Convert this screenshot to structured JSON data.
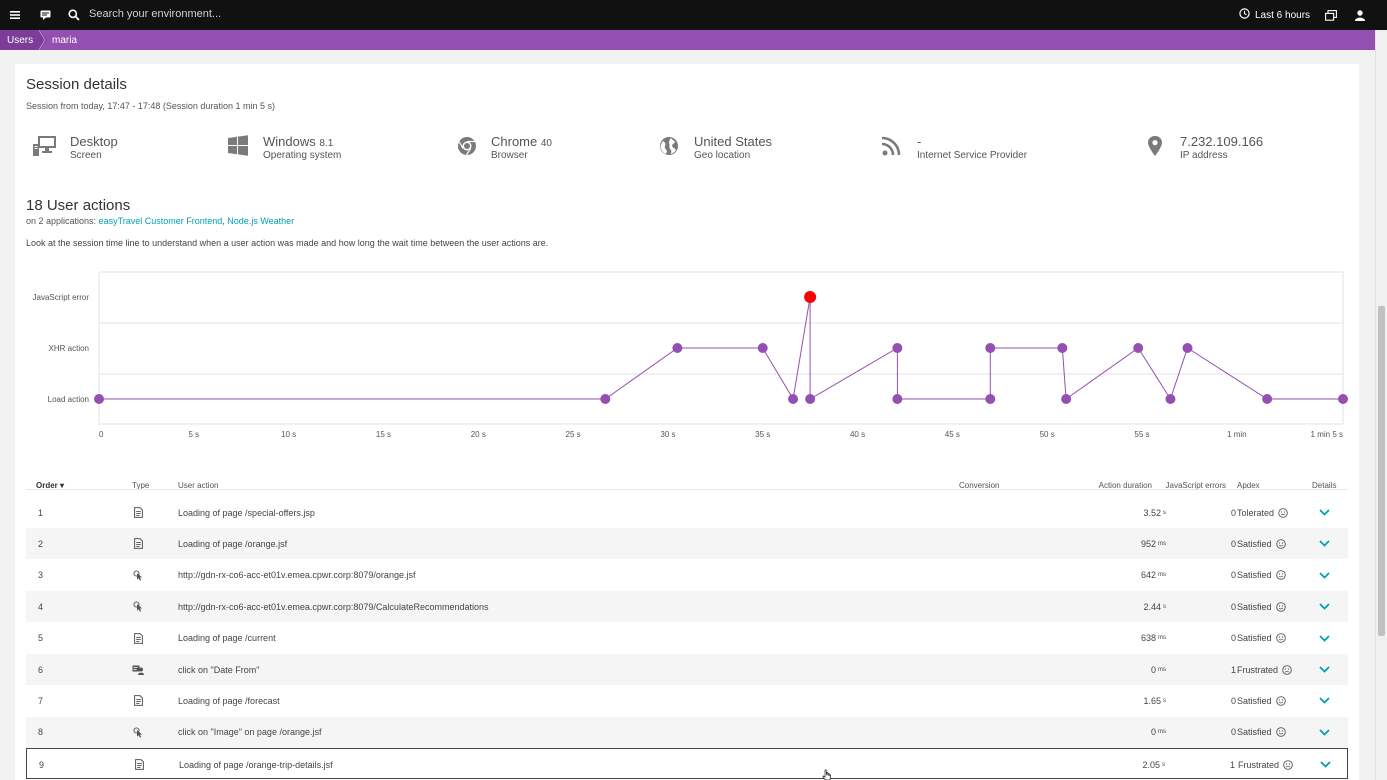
{
  "topbar": {
    "search_placeholder": "Search your environment...",
    "timeframe": "Last 6 hours",
    "icons": [
      "menu-icon",
      "chat-icon",
      "search-icon",
      "clock-icon",
      "windows-icon",
      "user-icon"
    ]
  },
  "breadcrumb": [
    "Users",
    "maria"
  ],
  "session": {
    "title": "Session details",
    "subtitle": "Session from today, 17:47 - 17:48 (Session duration 1 min 5 s)",
    "info": [
      {
        "icon": "desktop-icon",
        "title": "Desktop",
        "version": "",
        "label": "Screen"
      },
      {
        "icon": "windows-logo-icon",
        "title": "Windows",
        "version": "8.1",
        "label": "Operating system"
      },
      {
        "icon": "chrome-icon",
        "title": "Chrome",
        "version": "40",
        "label": "Browser"
      },
      {
        "icon": "globe-icon",
        "title": "United States",
        "version": "",
        "label": "Geo location"
      },
      {
        "icon": "rss-icon",
        "title": "-",
        "version": "",
        "label": "Internet Service Provider"
      },
      {
        "icon": "location-pin-icon",
        "title": "7.232.109.166",
        "version": "",
        "label": "IP address"
      }
    ]
  },
  "actions": {
    "title": "18 User actions",
    "apps_prefix": "on 2 applications: ",
    "app1": "easyTravel Customer Frontend",
    "app_sep": ", ",
    "app2": "Node.js Weather",
    "description": "Look at the session time line to understand when a user action was made and how long the wait time between the user actions are."
  },
  "chart_data": {
    "type": "line",
    "y_categories": [
      "JavaScript error",
      "XHR action",
      "Load action"
    ],
    "x_ticks": [
      "0",
      "5 s",
      "10 s",
      "15 s",
      "20 s",
      "25 s",
      "30 s",
      "35 s",
      "40 s",
      "45 s",
      "50 s",
      "55 s",
      "1 min",
      "1 min 5 s"
    ],
    "x_tick_values": [
      0,
      5,
      10,
      15,
      20,
      25,
      30,
      35,
      40,
      45,
      50,
      55,
      60,
      65
    ],
    "points": [
      {
        "x": 0,
        "level": "Load action"
      },
      {
        "x": 26.7,
        "level": "Load action"
      },
      {
        "x": 30.5,
        "level": "XHR action"
      },
      {
        "x": 35,
        "level": "XHR action"
      },
      {
        "x": 36.6,
        "level": "Load action"
      },
      {
        "x": 37.5,
        "level": "JavaScript error"
      },
      {
        "x": 37.5,
        "level": "Load action"
      },
      {
        "x": 42.1,
        "level": "XHR action"
      },
      {
        "x": 42.1,
        "level": "Load action"
      },
      {
        "x": 47,
        "level": "Load action"
      },
      {
        "x": 47,
        "level": "XHR action"
      },
      {
        "x": 50.8,
        "level": "XHR action"
      },
      {
        "x": 51,
        "level": "Load action"
      },
      {
        "x": 54.8,
        "level": "XHR action"
      },
      {
        "x": 56.5,
        "level": "Load action"
      },
      {
        "x": 57.4,
        "level": "XHR action"
      },
      {
        "x": 61.6,
        "level": "Load action"
      },
      {
        "x": 65.6,
        "level": "Load action"
      }
    ],
    "point_color": "#9350b1",
    "error_color": "#ff0000",
    "grid": true
  },
  "table": {
    "headers": {
      "order": "Order",
      "type": "Type",
      "action": "User action",
      "conversion": "Conversion",
      "duration": "Action duration",
      "errors": "JavaScript errors",
      "apdex": "Apdex",
      "details": "Details"
    },
    "rows": [
      {
        "order": "1",
        "type": "page-load-icon",
        "action": "Loading of page /special-offers.jsp",
        "duration": "3.52",
        "unit": "s",
        "errors": "0",
        "apdex": "Tolerated",
        "apdex_icon": "neutral-face-icon"
      },
      {
        "order": "2",
        "type": "page-load-icon",
        "action": "Loading of page /orange.jsf",
        "duration": "952",
        "unit": "ms",
        "errors": "0",
        "apdex": "Satisfied",
        "apdex_icon": "smile-face-icon"
      },
      {
        "order": "3",
        "type": "xhr-click-icon",
        "action": "http://gdn-rx-co6-acc-et01v.emea.cpwr.corp:8079/orange.jsf",
        "duration": "642",
        "unit": "ms",
        "errors": "0",
        "apdex": "Satisfied",
        "apdex_icon": "smile-face-icon"
      },
      {
        "order": "4",
        "type": "xhr-click-icon",
        "action": "http://gdn-rx-co6-acc-et01v.emea.cpwr.corp:8079/CalculateRecommendations",
        "duration": "2.44",
        "unit": "s",
        "errors": "0",
        "apdex": "Satisfied",
        "apdex_icon": "smile-face-icon"
      },
      {
        "order": "5",
        "type": "page-load-icon",
        "action": "Loading of page /current",
        "duration": "638",
        "unit": "ms",
        "errors": "0",
        "apdex": "Satisfied",
        "apdex_icon": "smile-face-icon"
      },
      {
        "order": "6",
        "type": "user-click-icon",
        "action": "click on \"Date From\"",
        "duration": "0",
        "unit": "ms",
        "errors": "1",
        "apdex": "Frustrated",
        "apdex_icon": "frown-face-icon"
      },
      {
        "order": "7",
        "type": "page-load-icon",
        "action": "Loading of page /forecast",
        "duration": "1.65",
        "unit": "s",
        "errors": "0",
        "apdex": "Satisfied",
        "apdex_icon": "smile-face-icon"
      },
      {
        "order": "8",
        "type": "xhr-click-icon",
        "action": "click on \"Image\" on page /orange.jsf",
        "duration": "0",
        "unit": "ms",
        "errors": "0",
        "apdex": "Satisfied",
        "apdex_icon": "smile-face-icon"
      },
      {
        "order": "9",
        "type": "page-load-icon",
        "action": "Loading of page /orange-trip-details.jsf",
        "duration": "2.05",
        "unit": "s",
        "errors": "1",
        "apdex": "Frustrated",
        "apdex_icon": "frown-face-icon"
      }
    ]
  }
}
